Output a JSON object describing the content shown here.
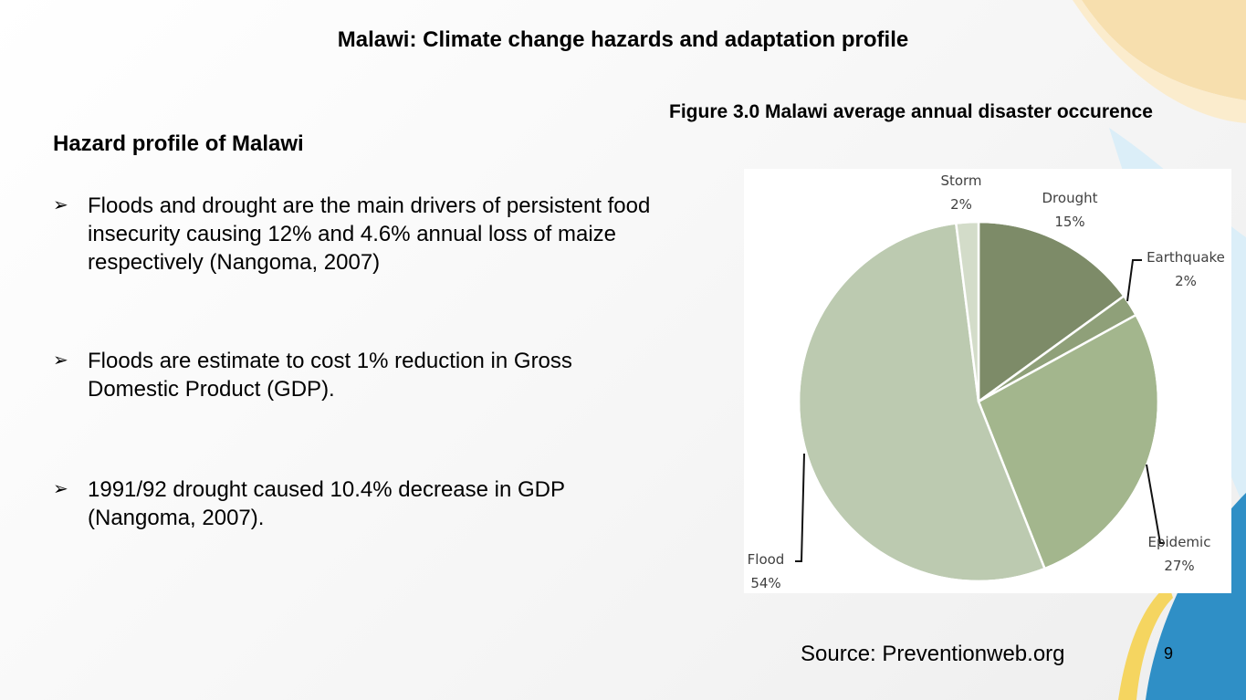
{
  "slide": {
    "title": "Malawi: Climate change hazards and adaptation profile",
    "figure_caption": "Figure 3.0 Malawi average annual disaster occurence",
    "section_heading": "Hazard  profile  of Malawi",
    "bullet_marker": "➢",
    "bullets": [
      {
        "text": "Floods and drought are the main drivers of persistent food insecurity  causing 12% and 4.6% annual loss of maize respectively (Nangoma, 2007)"
      },
      {
        "text": "Floods are estimate to cost 1% reduction in Gross Domestic Product (GDP)."
      },
      {
        "text": "1991/92 drought caused 10.4% decrease in GDP (Nangoma, 2007)."
      }
    ],
    "source": "Source: Preventionweb.org",
    "page_number": "9"
  },
  "chart_data": {
    "type": "pie",
    "slices": [
      {
        "label": "Drought",
        "value": 15,
        "value_label": "15%",
        "color": "#7d8b68"
      },
      {
        "label": "Earthquake",
        "value": 2,
        "value_label": "2%",
        "color": "#8fa079"
      },
      {
        "label": "Epidemic",
        "value": 27,
        "value_label": "27%",
        "color": "#a3b68d"
      },
      {
        "label": "Flood",
        "value": 54,
        "value_label": "54%",
        "color": "#bccab0"
      },
      {
        "label": "Storm",
        "value": 2,
        "value_label": "2%",
        "color": "#d3dcc9"
      }
    ],
    "start": "12 o'clock",
    "direction": "clockwise",
    "legend": "none"
  }
}
